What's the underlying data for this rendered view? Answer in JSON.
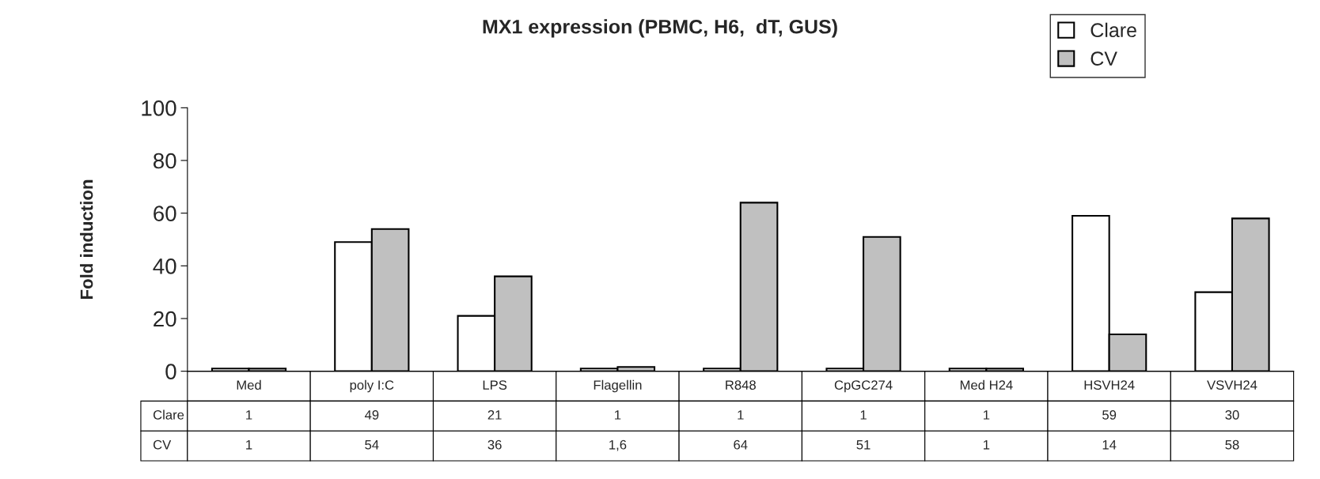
{
  "chart_data": {
    "type": "bar",
    "title": "MX1 expression (PBMC, H6,  dT, GUS)",
    "ylabel": "Fold induction",
    "categories": [
      "Med",
      "poly I:C",
      "LPS",
      "Flagellin",
      "R848",
      "CpGC274",
      "Med H24",
      "HSVH24",
      "VSVH24"
    ],
    "series": [
      {
        "name": "Clare",
        "color": "#ffffff",
        "values": [
          1,
          49,
          21,
          1,
          1,
          1,
          1,
          59,
          30
        ],
        "value_labels": [
          "1",
          "49",
          "21",
          "1",
          "1",
          "1",
          "1",
          "59",
          "30"
        ]
      },
      {
        "name": "CV",
        "color": "#c0c0c0",
        "values": [
          1,
          54,
          36,
          1.6,
          64,
          51,
          1,
          14,
          58
        ],
        "value_labels": [
          "1",
          "54",
          "36",
          "1,6",
          "64",
          "51",
          "1",
          "14",
          "58"
        ]
      }
    ],
    "ylim": [
      0,
      100
    ],
    "yticks": [
      0,
      20,
      40,
      60,
      80,
      100
    ],
    "grid": false,
    "legend": "top right"
  }
}
